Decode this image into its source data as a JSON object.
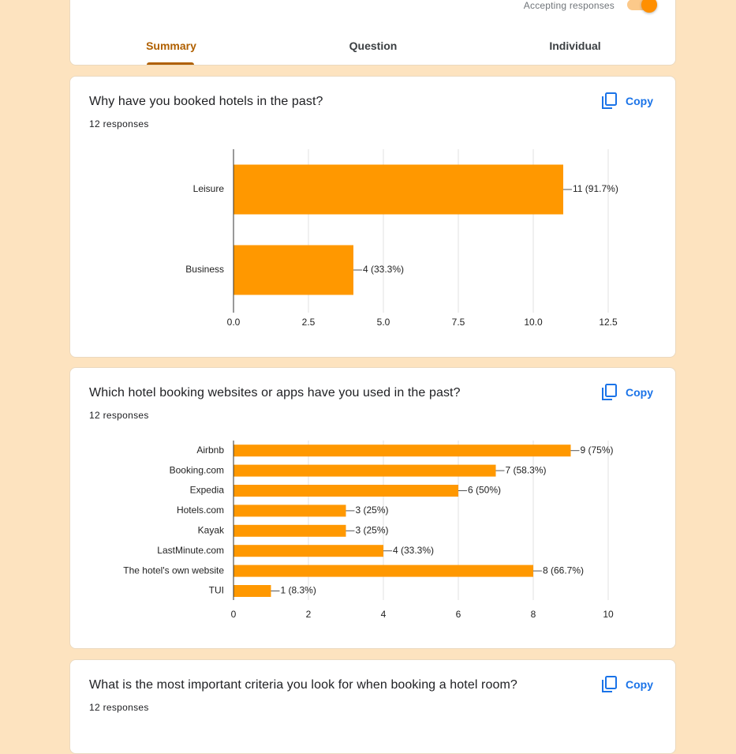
{
  "header": {
    "accepting_label": "Accepting responses",
    "tabs": [
      {
        "label": "Summary",
        "active": true
      },
      {
        "label": "Question",
        "active": false
      },
      {
        "label": "Individual",
        "active": false
      }
    ]
  },
  "colors": {
    "accent": "#ff9800",
    "tab_active": "#b06000",
    "link": "#1a73e8",
    "background": "#fde3bf"
  },
  "copy_icon": "copy-icon",
  "questions": [
    {
      "title": "Why have you booked hotels in the past?",
      "responses": "12 responses",
      "copy_label": "Copy"
    },
    {
      "title": "Which hotel booking websites or apps have you used in the past?",
      "responses": "12 responses",
      "copy_label": "Copy"
    },
    {
      "title": "What is the most important criteria you look for when booking a hotel room?",
      "responses": "12 responses",
      "copy_label": "Copy"
    }
  ],
  "chart_data": [
    {
      "type": "bar",
      "orientation": "horizontal",
      "categories": [
        "Leisure",
        "Business"
      ],
      "values": [
        11,
        4
      ],
      "data_labels": [
        "11 (91.7%)",
        "4 (33.3%)"
      ],
      "xlim": [
        0,
        12.5
      ],
      "xticks": [
        "0.0",
        "2.5",
        "5.0",
        "7.5",
        "10.0",
        "12.5"
      ],
      "grid": true,
      "color": "#ff9800"
    },
    {
      "type": "bar",
      "orientation": "horizontal",
      "categories": [
        "Airbnb",
        "Booking.com",
        "Expedia",
        "Hotels.com",
        "Kayak",
        "LastMinute.com",
        "The hotel's own website",
        "TUI"
      ],
      "values": [
        9,
        7,
        6,
        3,
        3,
        4,
        8,
        1
      ],
      "data_labels": [
        "9 (75%)",
        "7 (58.3%)",
        "6 (50%)",
        "3 (25%)",
        "3 (25%)",
        "4 (33.3%)",
        "8 (66.7%)",
        "1 (8.3%)"
      ],
      "xlim": [
        0,
        10
      ],
      "xticks": [
        "0",
        "2",
        "4",
        "6",
        "8",
        "10"
      ],
      "grid": true,
      "color": "#ff9800"
    }
  ]
}
